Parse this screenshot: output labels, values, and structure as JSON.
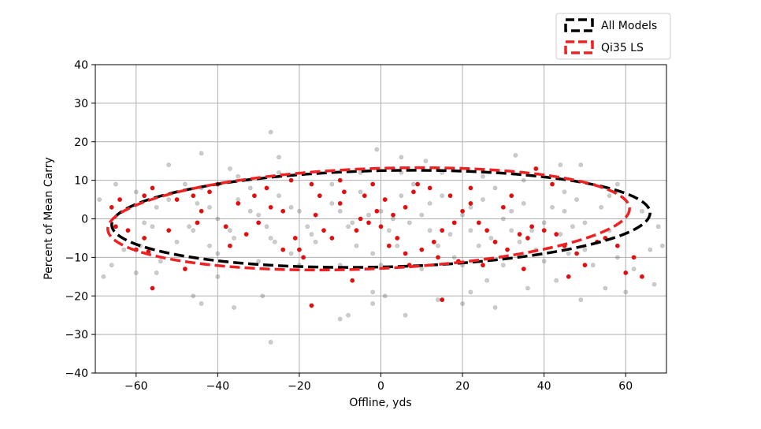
{
  "chart_data": {
    "type": "scatter",
    "xlabel": "Offline, yds",
    "ylabel": "Percent of Mean Carry",
    "xlim": [
      -70,
      70
    ],
    "ylim": [
      -40,
      40
    ],
    "x_ticks": [
      -60,
      -40,
      -20,
      0,
      20,
      40,
      60
    ],
    "x_tick_labels": [
      "−60",
      "−40",
      "−20",
      "0",
      "20",
      "40",
      "60"
    ],
    "y_ticks": [
      -40,
      -30,
      -20,
      -10,
      0,
      10,
      20,
      30,
      40
    ],
    "y_tick_labels": [
      "−40",
      "−30",
      "−20",
      "−10",
      "0",
      "10",
      "20",
      "30",
      "40"
    ],
    "grid": true,
    "legend_position": "above-right",
    "series": [
      {
        "name": "All Models",
        "kind": "points",
        "color": "#555555",
        "opacity": 0.3,
        "points": [
          [
            -27,
            22.5
          ],
          [
            -44,
            17
          ],
          [
            -37,
            13
          ],
          [
            -27,
            -32
          ],
          [
            -8,
            -25
          ],
          [
            6,
            -25
          ],
          [
            -2,
            -22
          ],
          [
            -29,
            -20
          ],
          [
            -44,
            -22
          ],
          [
            -36,
            -23
          ],
          [
            -1,
            18
          ],
          [
            33,
            16.5
          ],
          [
            49,
            14
          ],
          [
            44,
            14
          ],
          [
            -52,
            14
          ],
          [
            -55,
            -14
          ],
          [
            -63,
            -8
          ],
          [
            -68,
            -15
          ],
          [
            -66,
            -12
          ],
          [
            -60,
            7
          ],
          [
            -65,
            9
          ],
          [
            -69,
            5
          ],
          [
            69,
            -7
          ],
          [
            67,
            -17
          ],
          [
            60,
            -19
          ],
          [
            55,
            -18
          ],
          [
            36,
            -18
          ],
          [
            20,
            -22
          ],
          [
            28,
            -23
          ],
          [
            -10,
            -26
          ],
          [
            -2,
            -19
          ],
          [
            1,
            -20
          ],
          [
            14,
            -21
          ],
          [
            22,
            -19
          ],
          [
            26,
            -16
          ],
          [
            49,
            -21
          ],
          [
            43,
            -16
          ],
          [
            5,
            16
          ],
          [
            -25,
            16
          ],
          [
            11,
            15
          ],
          [
            -40,
            -15
          ],
          [
            -46,
            -20
          ],
          [
            -60,
            -14
          ],
          [
            62,
            -13
          ],
          [
            58,
            -10
          ],
          [
            66,
            -8
          ],
          [
            68,
            -2
          ],
          [
            64,
            2
          ],
          [
            56,
            6
          ],
          [
            58,
            9
          ],
          [
            52,
            -12
          ],
          [
            46,
            -9
          ],
          [
            -48,
            9
          ],
          [
            -58,
            -1
          ],
          [
            -59,
            -7
          ],
          [
            -54,
            -11
          ],
          [
            -52,
            5
          ],
          [
            -44,
            8
          ],
          [
            -35,
            11
          ],
          [
            -25,
            12
          ],
          [
            -15,
            12
          ],
          [
            -5,
            12
          ],
          [
            5,
            12
          ],
          [
            15,
            12
          ],
          [
            25,
            11
          ],
          [
            35,
            10
          ],
          [
            45,
            7
          ],
          [
            54,
            3
          ],
          [
            56,
            -3
          ],
          [
            50,
            -8
          ],
          [
            40,
            -11
          ],
          [
            30,
            -12
          ],
          [
            20,
            -12
          ],
          [
            10,
            -13
          ],
          [
            0,
            -12
          ],
          [
            -10,
            -12
          ],
          [
            -20,
            -12
          ],
          [
            -30,
            -11
          ],
          [
            -40,
            -9
          ],
          [
            -50,
            -6
          ],
          [
            -56,
            -2
          ],
          [
            -55,
            3
          ],
          [
            -45,
            4
          ],
          [
            -35,
            5
          ],
          [
            -25,
            6
          ],
          [
            -15,
            6
          ],
          [
            -5,
            7
          ],
          [
            5,
            6
          ],
          [
            15,
            6
          ],
          [
            25,
            5
          ],
          [
            35,
            4
          ],
          [
            45,
            2
          ],
          [
            50,
            -1
          ],
          [
            44,
            -4
          ],
          [
            34,
            -6
          ],
          [
            24,
            -7
          ],
          [
            14,
            -7
          ],
          [
            4,
            -7
          ],
          [
            -6,
            -7
          ],
          [
            -16,
            -6
          ],
          [
            -26,
            -6
          ],
          [
            -36,
            -5
          ],
          [
            -46,
            -3
          ],
          [
            -40,
            0
          ],
          [
            -30,
            1
          ],
          [
            -20,
            2
          ],
          [
            -10,
            2
          ],
          [
            0,
            2
          ],
          [
            10,
            1
          ],
          [
            20,
            1
          ],
          [
            30,
            0
          ],
          [
            40,
            -1
          ],
          [
            32,
            -3
          ],
          [
            22,
            -3
          ],
          [
            12,
            -3
          ],
          [
            2,
            -3
          ],
          [
            -8,
            -2
          ],
          [
            -18,
            -2
          ],
          [
            -28,
            -2
          ],
          [
            -38,
            -2
          ],
          [
            -12,
            9
          ],
          [
            8,
            9
          ],
          [
            28,
            8
          ],
          [
            -32,
            8
          ],
          [
            -22,
            -9
          ],
          [
            -2,
            -9
          ],
          [
            18,
            -10
          ],
          [
            38,
            -8
          ],
          [
            -42,
            -7
          ],
          [
            48,
            5
          ],
          [
            3,
            0
          ],
          [
            -3,
            1
          ],
          [
            7,
            -1
          ],
          [
            -7,
            -1
          ],
          [
            12,
            4
          ],
          [
            -12,
            4
          ],
          [
            17,
            -4
          ],
          [
            -17,
            -4
          ],
          [
            22,
            3
          ],
          [
            -22,
            3
          ],
          [
            27,
            -5
          ],
          [
            -27,
            -5
          ],
          [
            32,
            2
          ],
          [
            -32,
            2
          ],
          [
            37,
            -3
          ],
          [
            -37,
            -3
          ],
          [
            42,
            3
          ],
          [
            -42,
            3
          ],
          [
            47,
            -2
          ],
          [
            -47,
            -2
          ]
        ]
      },
      {
        "name": "Qi35 LS",
        "kind": "points",
        "color": "#e01010",
        "opacity": 1,
        "points": [
          [
            -56,
            -18
          ],
          [
            -17,
            -22.5
          ],
          [
            15,
            -21
          ],
          [
            -7,
            -16
          ],
          [
            -48,
            -13
          ],
          [
            -57,
            -8.5
          ],
          [
            -58,
            -5
          ],
          [
            -62,
            -3
          ],
          [
            -65,
            -2
          ],
          [
            -64,
            5
          ],
          [
            -58,
            6
          ],
          [
            -50,
            5
          ],
          [
            -46,
            6
          ],
          [
            -42,
            7
          ],
          [
            -44,
            2
          ],
          [
            -35,
            4
          ],
          [
            -31,
            6
          ],
          [
            -27,
            3
          ],
          [
            -24,
            2
          ],
          [
            -30,
            -1
          ],
          [
            -38,
            -2
          ],
          [
            -33,
            -4
          ],
          [
            -21,
            -5
          ],
          [
            -20,
            -8
          ],
          [
            -19,
            -10
          ],
          [
            -14,
            -3
          ],
          [
            -12,
            -5
          ],
          [
            -6,
            -3
          ],
          [
            -3,
            -1
          ],
          [
            -1,
            2
          ],
          [
            1,
            5
          ],
          [
            -4,
            6
          ],
          [
            -9,
            7
          ],
          [
            -15,
            6
          ],
          [
            -17,
            9
          ],
          [
            -10,
            4
          ],
          [
            -5,
            0
          ],
          [
            0,
            -2
          ],
          [
            4,
            -5
          ],
          [
            6,
            -9
          ],
          [
            10,
            -8
          ],
          [
            13,
            -6
          ],
          [
            15,
            -3
          ],
          [
            18,
            -1
          ],
          [
            20,
            2
          ],
          [
            22,
            4
          ],
          [
            17,
            6
          ],
          [
            12,
            8
          ],
          [
            8,
            7
          ],
          [
            6,
            3
          ],
          [
            3,
            1
          ],
          [
            26,
            -3
          ],
          [
            28,
            -6
          ],
          [
            31,
            -8
          ],
          [
            34,
            -4
          ],
          [
            37,
            -2
          ],
          [
            40,
            -3
          ],
          [
            43,
            -4
          ],
          [
            45,
            -7
          ],
          [
            48,
            -9
          ],
          [
            50,
            -12
          ],
          [
            53,
            -6
          ],
          [
            55,
            -5
          ],
          [
            58,
            -7
          ],
          [
            62,
            -10
          ],
          [
            46,
            -15
          ],
          [
            35,
            -13
          ],
          [
            25,
            -12
          ],
          [
            19,
            -11
          ],
          [
            -24,
            -8
          ],
          [
            -37,
            -7
          ],
          [
            -10,
            10
          ],
          [
            -2,
            9
          ],
          [
            9,
            9
          ],
          [
            22,
            8
          ],
          [
            32,
            6
          ],
          [
            38,
            13
          ],
          [
            42,
            9
          ],
          [
            30,
            3
          ],
          [
            24,
            -1
          ],
          [
            -45,
            -1
          ],
          [
            -52,
            -3
          ],
          [
            -60,
            -8
          ],
          [
            -66,
            3
          ],
          [
            -56,
            8
          ],
          [
            -40,
            9
          ],
          [
            -28,
            8
          ],
          [
            -22,
            10
          ],
          [
            -16,
            1
          ],
          [
            2,
            -7
          ],
          [
            7,
            -12
          ],
          [
            14,
            -10
          ],
          [
            36,
            -5
          ],
          [
            60,
            -14
          ],
          [
            64,
            -15
          ]
        ]
      },
      {
        "name": "All Models",
        "kind": "ellipse",
        "color": "#000000",
        "center": [
          0,
          0
        ],
        "rx": 66,
        "ry": 12.5,
        "angle_deg": -1.3
      },
      {
        "name": "Qi35 LS",
        "kind": "ellipse",
        "color": "#ee2222",
        "center": [
          -3,
          0
        ],
        "rx": 64,
        "ry": 13,
        "angle_deg": -2.3
      }
    ]
  }
}
